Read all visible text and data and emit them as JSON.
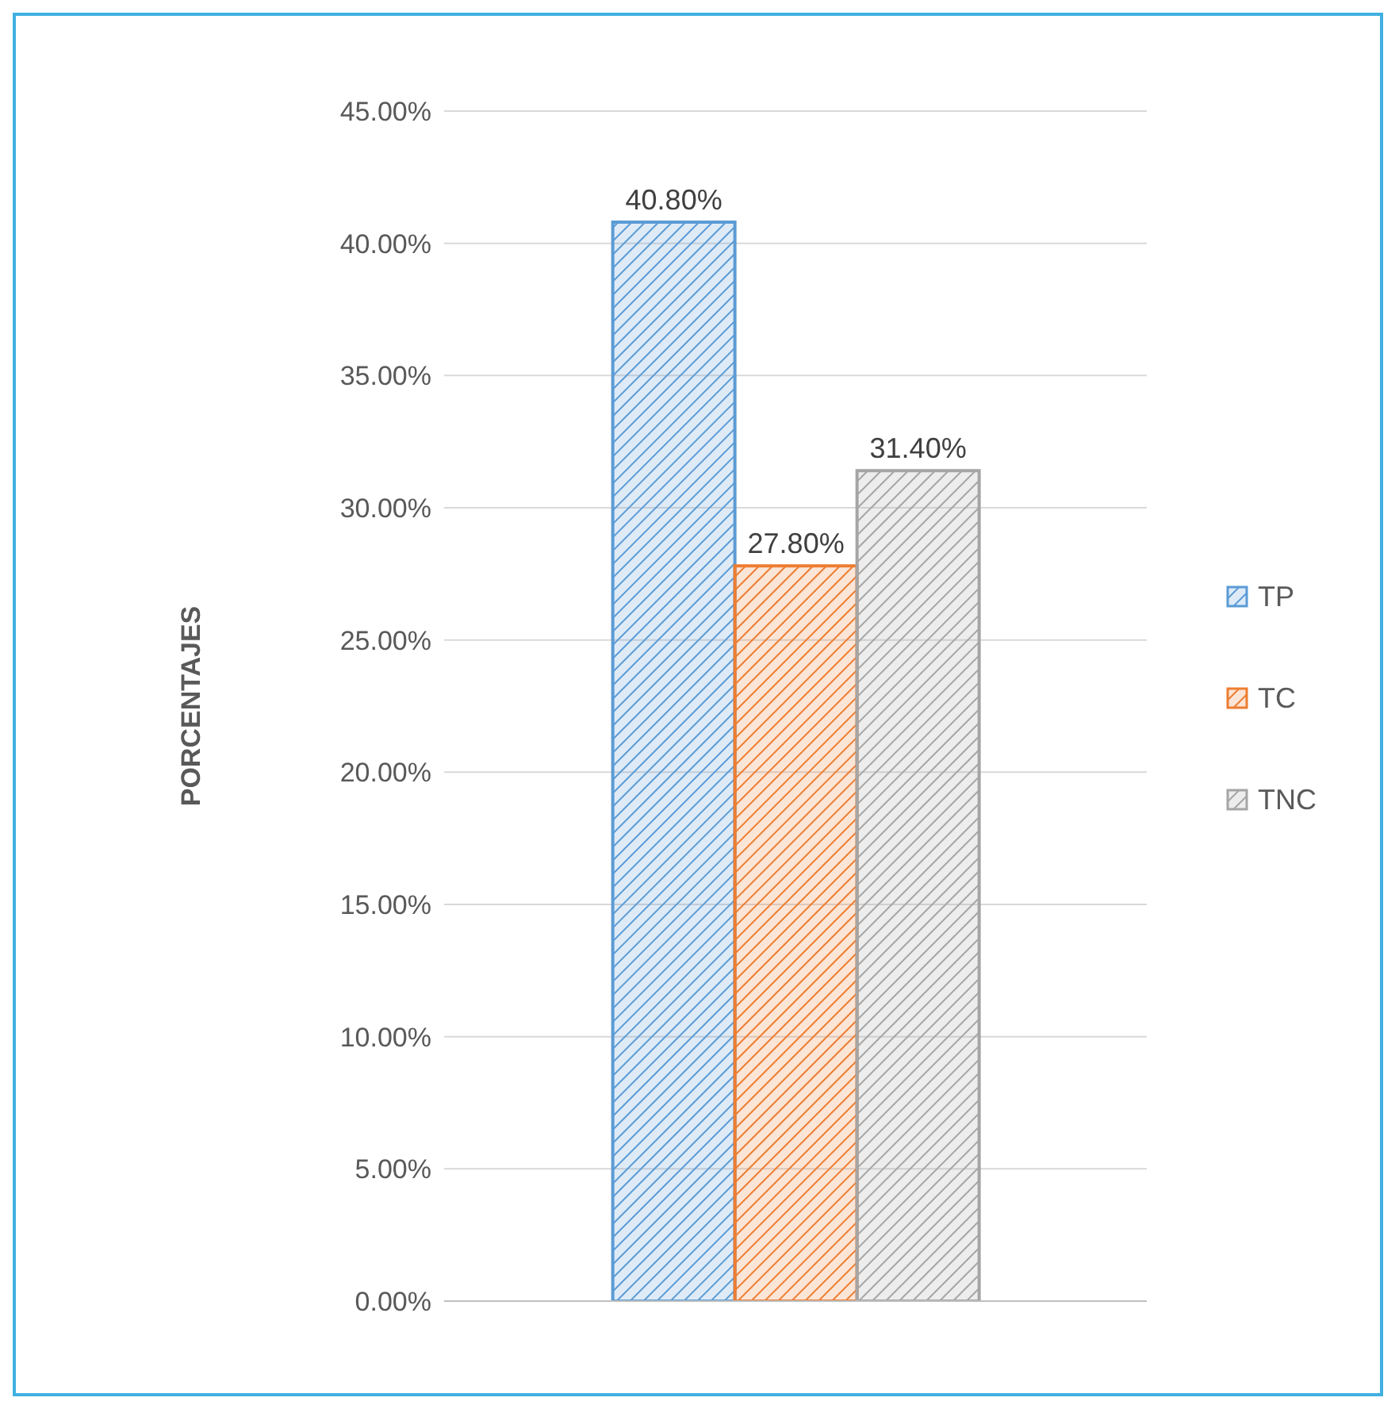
{
  "chart_data": {
    "type": "bar",
    "ylabel": "PORCENTAJES",
    "categories": [
      null
    ],
    "series": [
      {
        "name": "TP",
        "color": "#5b9bd5",
        "values": [
          40.8
        ],
        "value_labels": [
          "40.80%"
        ]
      },
      {
        "name": "TC",
        "color": "#ed7d31",
        "values": [
          27.8
        ],
        "value_labels": [
          "27.80%"
        ]
      },
      {
        "name": "TNC",
        "color": "#a5a5a5",
        "values": [
          31.4
        ],
        "value_labels": [
          "31.40%"
        ]
      }
    ],
    "ylim": [
      0,
      45
    ],
    "yticks": [
      {
        "value": 0,
        "label": "0.00%"
      },
      {
        "value": 5,
        "label": "5.00%"
      },
      {
        "value": 10,
        "label": "10.00%"
      },
      {
        "value": 15,
        "label": "15.00%"
      },
      {
        "value": 20,
        "label": "20.00%"
      },
      {
        "value": 25,
        "label": "25.00%"
      },
      {
        "value": 30,
        "label": "30.00%"
      },
      {
        "value": 35,
        "label": "35.00%"
      },
      {
        "value": 40,
        "label": "40.00%"
      },
      {
        "value": 45,
        "label": "45.00%"
      }
    ],
    "grid": "y",
    "legend": "right"
  }
}
